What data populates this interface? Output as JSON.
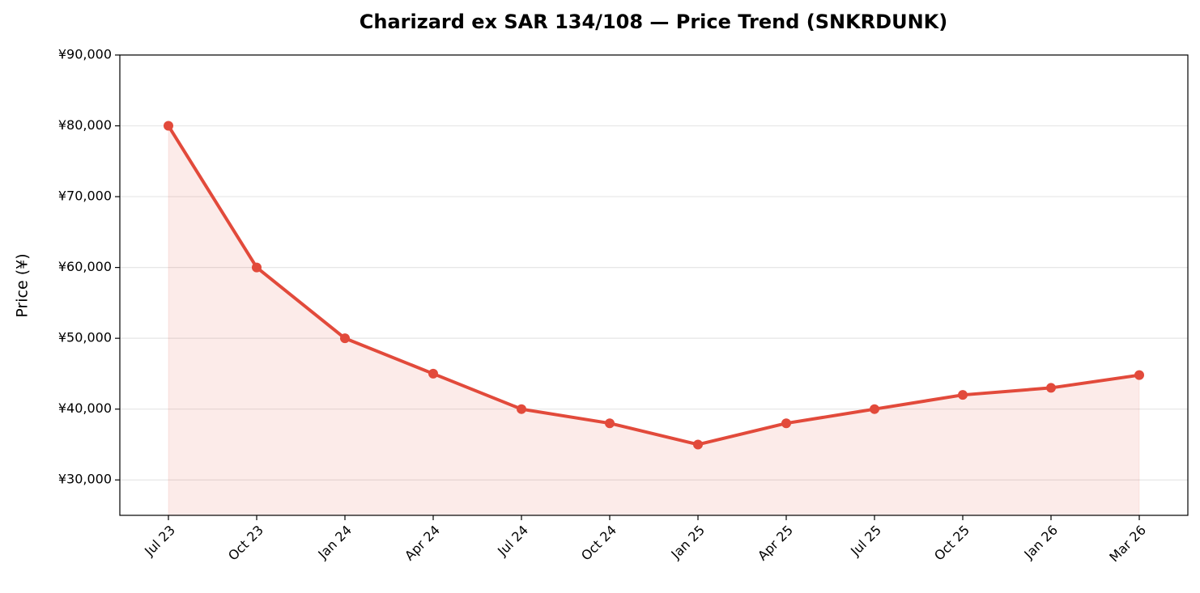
{
  "chart_data": {
    "type": "line",
    "title": "Charizard ex SAR 134/108 — Price Trend (SNKRDUNK)",
    "y_label": "Price (¥)",
    "categories": [
      "Jul 23",
      "Oct 23",
      "Jan 24",
      "Apr 24",
      "Jul 24",
      "Oct 24",
      "Jan 25",
      "Apr 25",
      "Jul 25",
      "Oct 25",
      "Jan 26",
      "Mar 26"
    ],
    "series": [
      {
        "name": "Price",
        "color": "#e24a3b",
        "values": [
          80000,
          60000,
          50000,
          45000,
          40000,
          38000,
          35000,
          38000,
          40000,
          42000,
          43000,
          44800
        ]
      }
    ],
    "area_fill": true,
    "ylim": [
      25000,
      90000
    ],
    "yticks": [
      {
        "value": 30000,
        "label": "¥30,000"
      },
      {
        "value": 40000,
        "label": "¥40,000"
      },
      {
        "value": 50000,
        "label": "¥50,000"
      },
      {
        "value": 60000,
        "label": "¥60,000"
      },
      {
        "value": 70000,
        "label": "¥70,000"
      },
      {
        "value": 80000,
        "label": "¥80,000"
      },
      {
        "value": 90000,
        "label": "¥90,000"
      }
    ],
    "grid": true
  }
}
